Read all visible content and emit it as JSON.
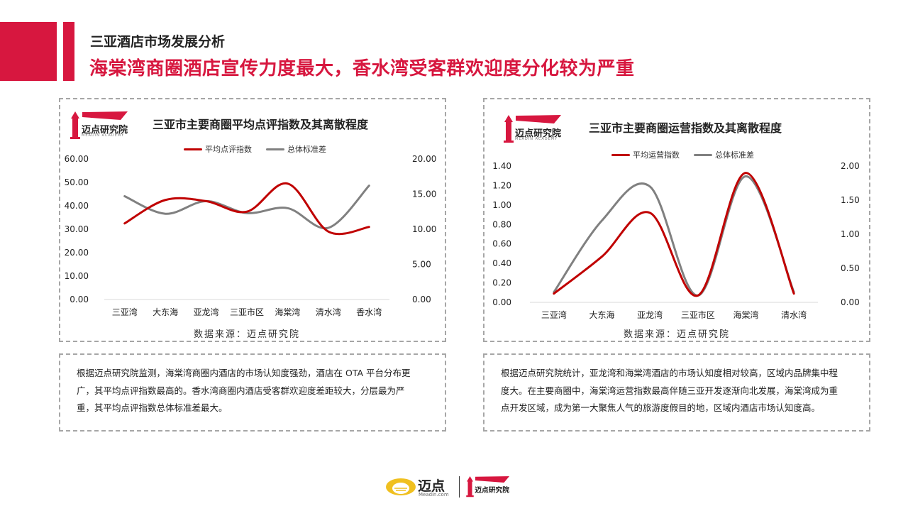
{
  "header": {
    "subtitle": "三亚酒店市场发展分析",
    "headline": "海棠湾商圈酒店宣传力度最大，香水湾受客群欢迎度分化较为严重"
  },
  "brand": {
    "logo_text": "迈点研究院",
    "logo_sub": "MEADIN ACADEMY",
    "footer_text": "迈点",
    "footer_sub": "Meadin.com",
    "colors": {
      "red": "#d7173f",
      "dark_red": "#c00000",
      "gray": "#808080",
      "gold": "#f0c020"
    }
  },
  "chart_data": [
    {
      "type": "line",
      "title": "三亚市主要商圈平均点评指数及其离散程度",
      "categories": [
        "三亚湾",
        "大东海",
        "亚龙湾",
        "三亚市区",
        "海棠湾",
        "清水湾",
        "香水湾"
      ],
      "series": [
        {
          "name": "平均点评指数",
          "axis": "left",
          "color": "#c00000",
          "values": [
            32.5,
            42.5,
            42.0,
            37.5,
            49.5,
            29.0,
            31.0
          ]
        },
        {
          "name": "总体标准差",
          "axis": "right",
          "color": "#808080",
          "values": [
            14.7,
            12.2,
            14.0,
            12.3,
            13.0,
            10.2,
            16.2
          ]
        }
      ],
      "y_left": {
        "min": 0,
        "max": 60,
        "ticks": [
          "0.00",
          "10.00",
          "20.00",
          "30.00",
          "40.00",
          "50.00",
          "60.00"
        ]
      },
      "y_right": {
        "min": 0,
        "max": 20,
        "ticks": [
          "0.00",
          "5.00",
          "10.00",
          "15.00",
          "20.00"
        ]
      },
      "grid": false,
      "legend": "top",
      "source": "数据来源：迈点研究院"
    },
    {
      "type": "line",
      "title": "三亚市主要商圈运营指数及其离散程度",
      "categories": [
        "三亚湾",
        "大东海",
        "亚龙湾",
        "三亚市区",
        "海棠湾",
        "清水湾"
      ],
      "series": [
        {
          "name": "平均运营指数",
          "axis": "left",
          "color": "#c00000",
          "values": [
            0.09,
            0.47,
            0.92,
            0.07,
            1.33,
            0.09
          ]
        },
        {
          "name": "总体标准差",
          "axis": "right",
          "color": "#808080",
          "values": [
            0.15,
            1.2,
            1.7,
            0.1,
            1.85,
            0.15
          ]
        }
      ],
      "y_left": {
        "min": 0,
        "max": 1.4,
        "ticks": [
          "0.00",
          "0.20",
          "0.40",
          "0.60",
          "0.80",
          "1.00",
          "1.20",
          "1.40"
        ]
      },
      "y_right": {
        "min": 0,
        "max": 2,
        "ticks": [
          "0.00",
          "0.50",
          "1.00",
          "1.50",
          "2.00"
        ]
      },
      "grid": false,
      "legend": "top",
      "source": "数据来源：迈点研究院"
    }
  ],
  "text_left": {
    "lines": [
      "根据迈点研究院监测，海棠湾商圈内酒店的市场认知度强劲，酒店在 OTA 平台分布更",
      "广，其平均点评指数最高的。香水湾商圈内酒店受客群欢迎度差距较大，分层最为严",
      "重，其平均点评指数总体标准差最大。"
    ]
  },
  "text_right": {
    "lines": [
      "根据迈点研究院统计，亚龙湾和海棠湾酒店的市场认知度相对较高，区域内品牌集中程",
      "度大。在主要商圈中，海棠湾运营指数最高伴随三亚开发逐渐向北发展，海棠湾成为重",
      "点开发区域，成为第一大聚焦人气的旅游度假目的地，区域内酒店市场认知度高。"
    ]
  }
}
